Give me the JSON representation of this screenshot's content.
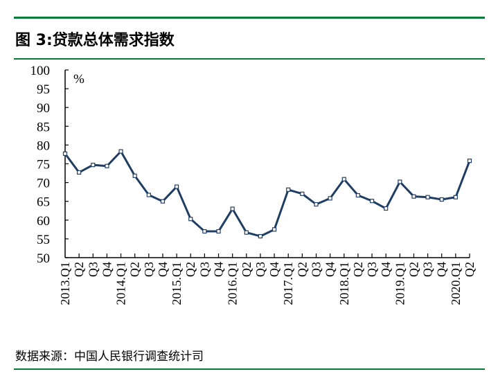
{
  "title": "图 3:贷款总体需求指数",
  "source": "数据来源：中国人民银行调查统计司",
  "colors": {
    "line": "#1f3d63",
    "rule": "#0a7a3a"
  },
  "chart_data": {
    "type": "line",
    "title": "图 3:贷款总体需求指数",
    "unit_label": "%",
    "ylim": [
      50,
      100
    ],
    "yticks": [
      50,
      55,
      60,
      65,
      70,
      75,
      80,
      85,
      90,
      95,
      100
    ],
    "grid": false,
    "marker": "hollow-square",
    "categories": [
      "2013.Q1",
      "Q2",
      "Q3",
      "Q4",
      "2014.Q1",
      "Q2",
      "Q3",
      "Q4",
      "2015.Q1",
      "Q2",
      "Q3",
      "Q4",
      "2016.Q1",
      "Q2",
      "Q3",
      "Q4",
      "2017.Q1",
      "Q2",
      "Q3",
      "Q4",
      "2018.Q1",
      "Q2",
      "Q3",
      "Q4",
      "2019.Q1",
      "Q2",
      "Q3",
      "Q4",
      "2020.Q1",
      "Q2"
    ],
    "values": [
      77.7,
      72.7,
      74.7,
      74.4,
      78.3,
      71.8,
      66.7,
      65.0,
      68.9,
      60.3,
      57.0,
      57.0,
      63.0,
      56.7,
      55.7,
      57.5,
      68.1,
      67.0,
      64.2,
      65.8,
      70.9,
      66.6,
      65.1,
      63.1,
      70.2,
      66.3,
      66.1,
      65.5,
      66.1,
      75.8
    ]
  }
}
